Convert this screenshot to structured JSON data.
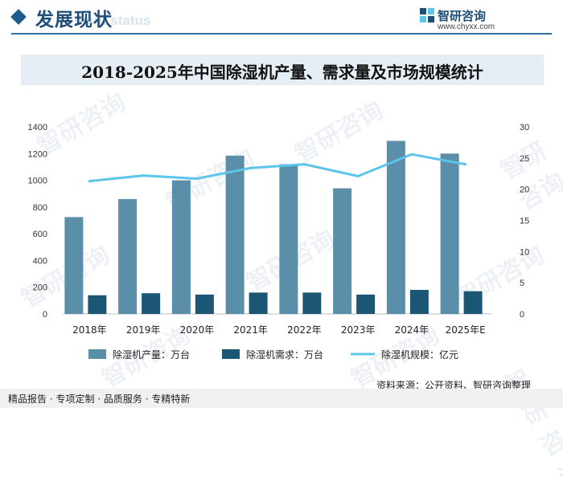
{
  "header": {
    "title": "发展现状",
    "subtitle": "ment status"
  },
  "brand": {
    "name": "智研咨询",
    "url": "www.chyxx.com"
  },
  "source": "资料来源：公开资料、智研咨询整理",
  "footer": "精品报告 · 专项定制 · 品质服务 · 专精特新",
  "watermarks": [
    "智研咨询",
    "智研咨询",
    "智研咨询",
    "智研咨询",
    "智研咨询",
    "智研咨询",
    "智研咨询",
    "智研咨询",
    "智研咨询",
    "智研咨询"
  ],
  "colors": {
    "production": "#5a8ea9",
    "demand": "#1b5675",
    "market": "#5bc6ea",
    "accent": "#1f4e79"
  },
  "chart_data": {
    "type": "bar",
    "title": "2018-2025年中国除湿机产量、需求量及市场规模统计",
    "categories": [
      "2018年",
      "2019年",
      "2020年",
      "2021年",
      "2022年",
      "2023年",
      "2024年",
      "2025年E"
    ],
    "series": [
      {
        "name": "除湿机产量：万台",
        "type": "bar",
        "axis": "left",
        "values": [
          725,
          860,
          1000,
          1185,
          1120,
          940,
          1295,
          1200
        ]
      },
      {
        "name": "除湿机需求：万台",
        "type": "bar",
        "axis": "left",
        "values": [
          140,
          155,
          145,
          160,
          160,
          145,
          180,
          170
        ]
      },
      {
        "name": "除湿机规模：亿元",
        "type": "line",
        "axis": "right",
        "values": [
          21.3,
          22.2,
          21.7,
          23.4,
          24.0,
          22.1,
          25.6,
          24.0
        ]
      }
    ],
    "y_left": {
      "min": 0,
      "max": 1400,
      "ticks": [
        0,
        200,
        400,
        600,
        800,
        1000,
        1200,
        1400
      ]
    },
    "y_right": {
      "min": 0,
      "max": 30,
      "ticks": [
        0,
        5,
        10,
        15,
        20,
        25,
        30
      ]
    },
    "legend_position": "bottom",
    "grid": false
  }
}
